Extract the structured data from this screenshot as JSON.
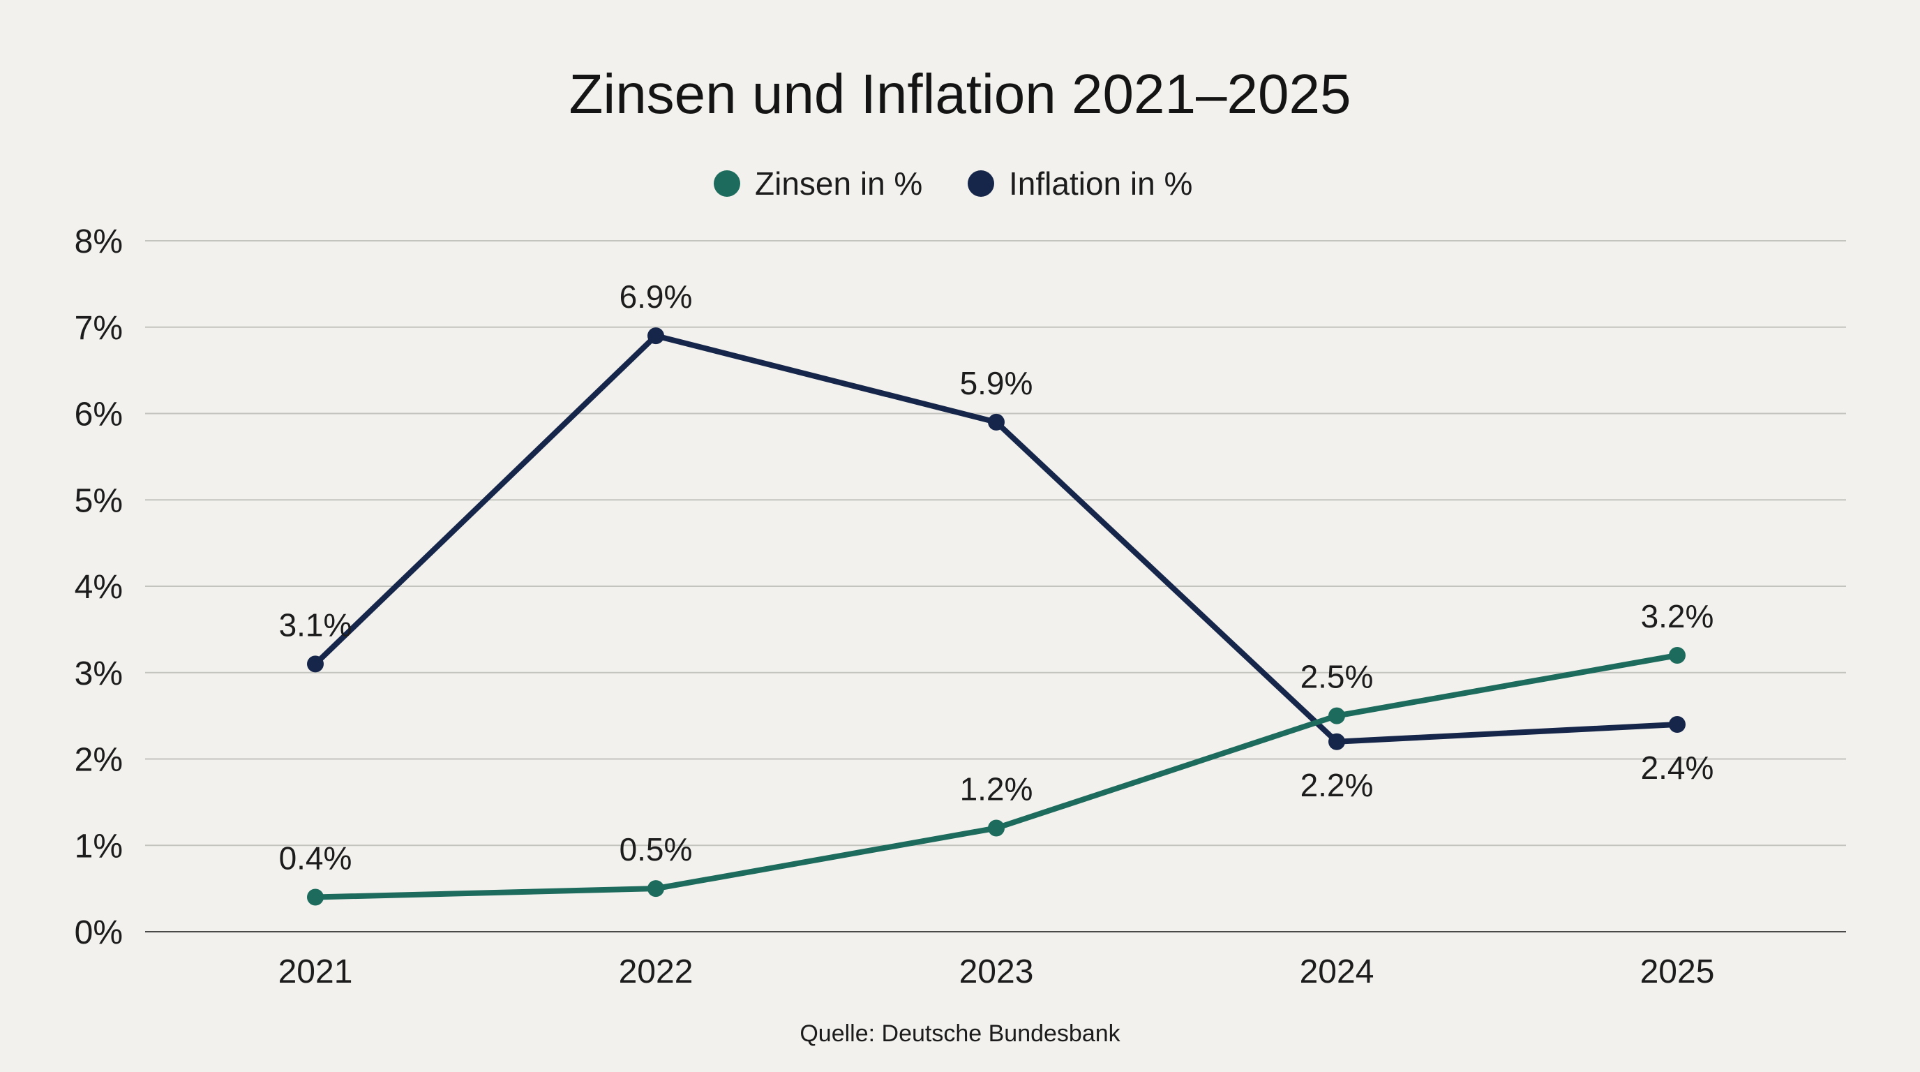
{
  "chart_data": {
    "type": "line",
    "title": "Zinsen und Inflation 2021–2025",
    "xlabel": "",
    "ylabel": "",
    "categories": [
      "2021",
      "2022",
      "2023",
      "2024",
      "2025"
    ],
    "y_ticks": [
      "0%",
      "1%",
      "2%",
      "3%",
      "4%",
      "5%",
      "6%",
      "7%",
      "8%"
    ],
    "ylim": [
      0,
      8
    ],
    "grid": true,
    "legend_position": "top-center",
    "series": [
      {
        "name": "Zinsen in %",
        "color": "#1c6b5c",
        "values": [
          0.4,
          0.5,
          1.2,
          2.5,
          3.2
        ],
        "labels": [
          "0.4%",
          "0.5%",
          "1.2%",
          "2.5%",
          "3.2%"
        ],
        "label_placement": [
          "above",
          "above",
          "above",
          "above",
          "above"
        ]
      },
      {
        "name": "Inflation in %",
        "color": "#16264a",
        "values": [
          3.1,
          6.9,
          5.9,
          2.2,
          2.4
        ],
        "labels": [
          "3.1%",
          "6.9%",
          "5.9%",
          "2.2%",
          "2.4%"
        ],
        "label_placement": [
          "above",
          "above",
          "above",
          "below",
          "below"
        ]
      }
    ],
    "source": "Quelle: Deutsche Bundesbank"
  }
}
